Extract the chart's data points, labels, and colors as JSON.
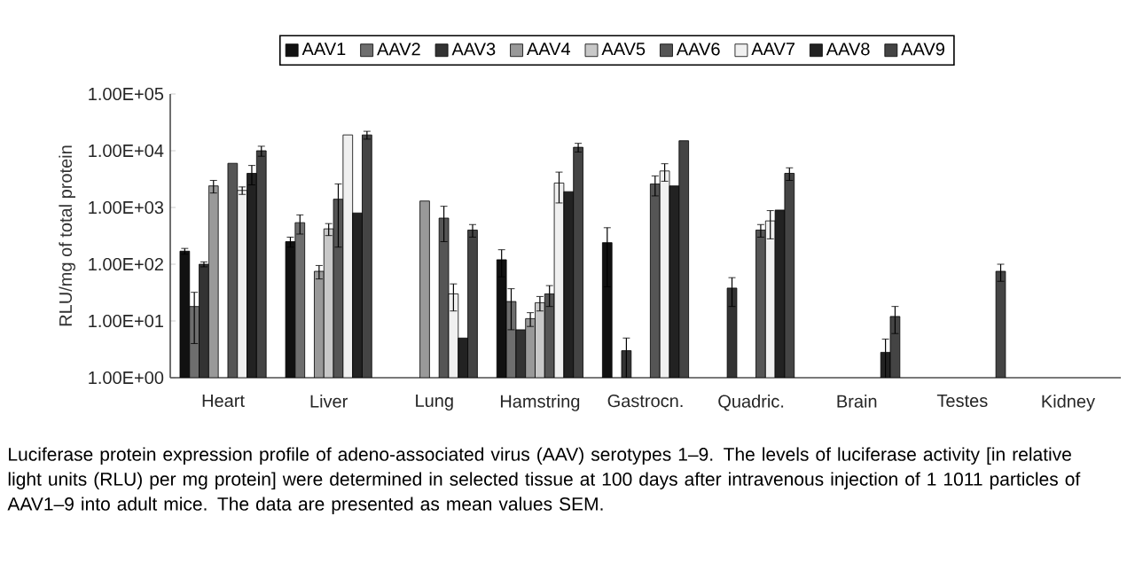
{
  "chart_data": {
    "type": "bar",
    "ylabel": "RLU/mg of total protein",
    "log": true,
    "legend": "top",
    "grid": false,
    "categories": [
      "Heart",
      "Liver",
      "Lung",
      "Hamstring",
      "Gastrocn.",
      "Quadric.",
      "Brain",
      "Testes",
      "Kidney"
    ],
    "ylim": [
      1,
      100000
    ],
    "yticks": [
      {
        "value": 1,
        "label": "1.00E+00"
      },
      {
        "value": 10,
        "label": "1.00E+01"
      },
      {
        "value": 100,
        "label": "1.00E+02"
      },
      {
        "value": 1000,
        "label": "1.00E+03"
      },
      {
        "value": 10000,
        "label": "1.00E+04"
      },
      {
        "value": 100000,
        "label": "1.00E+05"
      }
    ],
    "series": [
      {
        "name": "AAV1",
        "color": "#111111",
        "values": [
          170,
          250,
          null,
          120,
          240,
          null,
          null,
          null,
          null
        ],
        "errors": [
          20,
          50,
          null,
          60,
          200,
          null,
          null,
          null,
          null
        ]
      },
      {
        "name": "AAV2",
        "color": "#6e6e6e",
        "values": [
          18,
          540,
          null,
          22,
          null,
          null,
          null,
          null,
          null
        ],
        "errors": [
          14,
          200,
          null,
          15,
          null,
          null,
          null,
          null,
          null
        ]
      },
      {
        "name": "AAV3",
        "color": "#333333",
        "values": [
          100,
          null,
          null,
          7,
          3,
          38,
          null,
          null,
          null
        ],
        "errors": [
          10,
          null,
          null,
          null,
          2,
          20,
          null,
          null,
          null
        ]
      },
      {
        "name": "AAV4",
        "color": "#999999",
        "values": [
          2400,
          75,
          1300,
          11,
          null,
          null,
          null,
          null,
          null
        ],
        "errors": [
          600,
          20,
          null,
          3,
          null,
          null,
          null,
          null,
          null
        ]
      },
      {
        "name": "AAV5",
        "color": "#c8c8c8",
        "values": [
          null,
          420,
          null,
          21,
          null,
          null,
          null,
          null,
          null
        ],
        "errors": [
          null,
          100,
          null,
          6,
          null,
          null,
          null,
          null,
          null
        ]
      },
      {
        "name": "AAV6",
        "color": "#555555",
        "values": [
          6000,
          1400,
          650,
          30,
          2600,
          400,
          null,
          null,
          null
        ],
        "errors": [
          null,
          1200,
          400,
          12,
          1000,
          100,
          null,
          null,
          null
        ]
      },
      {
        "name": "AAV7",
        "color": "#f0f0f0",
        "values": [
          2000,
          19000,
          30,
          2700,
          4400,
          580,
          null,
          null,
          null
        ],
        "errors": [
          300,
          null,
          15,
          1500,
          1500,
          300,
          null,
          null,
          null
        ]
      },
      {
        "name": "AAV8",
        "color": "#222222",
        "values": [
          4000,
          800,
          5,
          1900,
          2400,
          900,
          2.8,
          null,
          null
        ],
        "errors": [
          1500,
          null,
          null,
          null,
          null,
          null,
          2,
          null,
          null
        ]
      },
      {
        "name": "AAV9",
        "color": "#444444",
        "values": [
          10000,
          19000,
          400,
          11500,
          15000,
          4000,
          12,
          75,
          null
        ],
        "errors": [
          2000,
          3000,
          100,
          2000,
          null,
          1000,
          6,
          25,
          null
        ]
      }
    ],
    "annotations": [
      "Luciferase protein expression profile of adeno-associated virus (AAV) serotypes 1–9. The levels of luciferase activity [in relative light units (RLU) per mg protein] were determined in selected tissue at 100 days after intravenous injection of 1 1011 particles of AAV1–9 into adult mice. The data are presented as mean values SEM."
    ]
  }
}
